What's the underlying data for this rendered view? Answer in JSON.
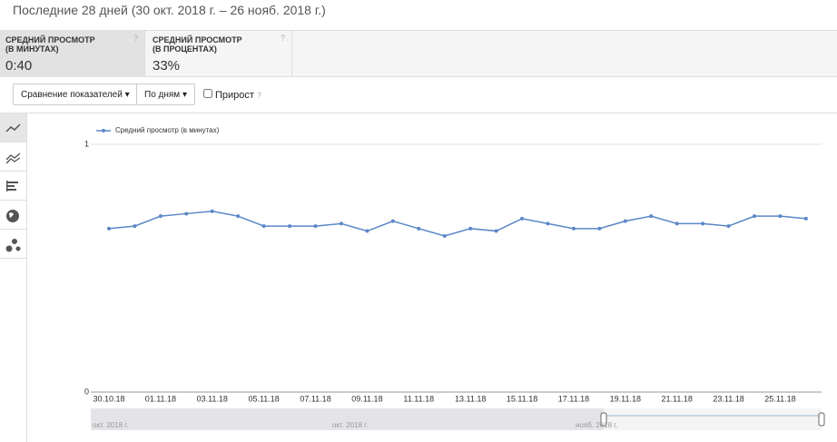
{
  "header": {
    "title": "Последние 28 дней (30 окт. 2018 г. – 26 нояб. 2018 г.)"
  },
  "metrics": [
    {
      "label": "СРЕДНИЙ ПРОСМОТР",
      "sublabel": "(В МИНУТАХ)",
      "value": "0:40"
    },
    {
      "label": "СРЕДНИЙ ПРОСМОТР",
      "sublabel": "(В ПРОЦЕНТАХ)",
      "value": "33%"
    }
  ],
  "controls": {
    "compare": "Сравнение показателей",
    "period": "По дням",
    "growth": "Прирост"
  },
  "navigator": {
    "labels": [
      "окт. 2018 г.",
      "окт. 2018 г.",
      "нояб. 2018 г."
    ]
  },
  "chart_data": {
    "type": "line",
    "categories": [
      "30.10.18",
      null,
      "01.11.18",
      null,
      "03.11.18",
      null,
      "05.11.18",
      null,
      "07.11.18",
      null,
      "09.11.18",
      null,
      "11.11.18",
      null,
      "13.11.18",
      null,
      "15.11.18",
      null,
      "17.11.18",
      null,
      "19.11.18",
      null,
      "21.11.18",
      null,
      "23.11.18",
      null,
      "25.11.18",
      null
    ],
    "series": [
      {
        "name": "Средний просмотр (в минутах)",
        "color": "#5b87c6",
        "values": [
          0.66,
          0.67,
          0.71,
          0.72,
          0.73,
          0.71,
          0.67,
          0.67,
          0.67,
          0.68,
          0.65,
          0.69,
          0.66,
          0.63,
          0.66,
          0.65,
          0.7,
          0.68,
          0.66,
          0.66,
          0.69,
          0.71,
          0.68,
          0.68,
          0.67,
          0.71,
          0.71,
          0.7
        ]
      }
    ],
    "ylim": [
      0,
      1
    ],
    "yticks": [
      0,
      1
    ],
    "grid": true
  }
}
